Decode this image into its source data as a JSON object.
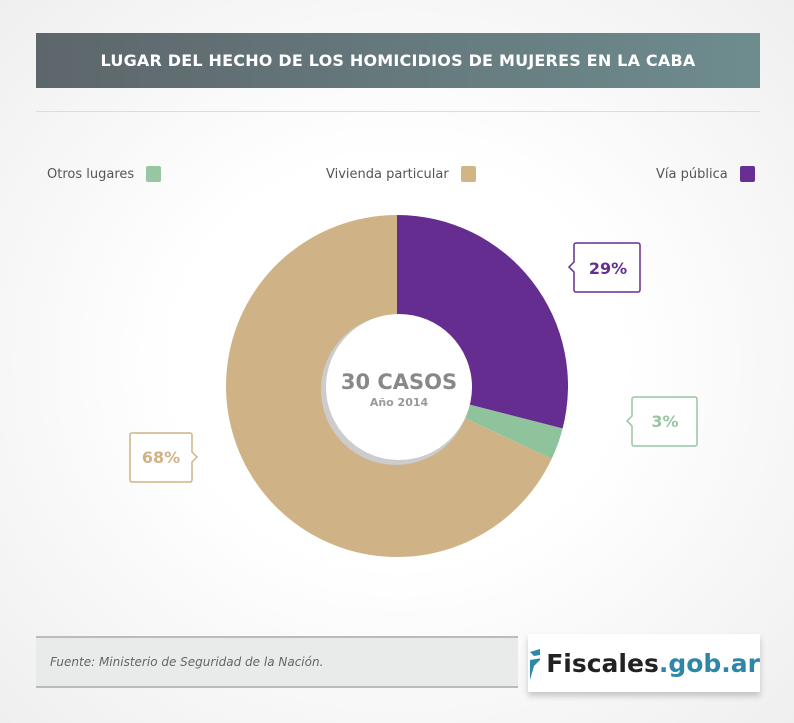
{
  "title": "LUGAR DEL HECHO DE LOS HOMICIDIOS DE MUJERES EN LA CABA",
  "chart_data": {
    "type": "pie",
    "donut": true,
    "center_label": "30 CASOS",
    "center_sublabel": "Año 2014",
    "slices": [
      {
        "name": "Vía pública",
        "value": 29,
        "label": "29%",
        "color": "#662d91"
      },
      {
        "name": "Otros lugares",
        "value": 3,
        "label": "3%",
        "color": "#8fc39c"
      },
      {
        "name": "Vivienda particular",
        "value": 68,
        "label": "68%",
        "color": "#cfb386"
      }
    ],
    "legend": [
      {
        "name": "Otros lugares",
        "color": "#98c5a2"
      },
      {
        "name": "Vivienda particular",
        "color": "#d1b585"
      },
      {
        "name": "Vía pública",
        "color": "#672f94"
      }
    ],
    "legend_position": "top"
  },
  "footer": {
    "source": "Fuente: Ministerio de Seguridad de la Nación."
  },
  "logo": {
    "main": "Fiscales",
    "suffix": ".gob.ar",
    "color": "#2e86a8"
  }
}
